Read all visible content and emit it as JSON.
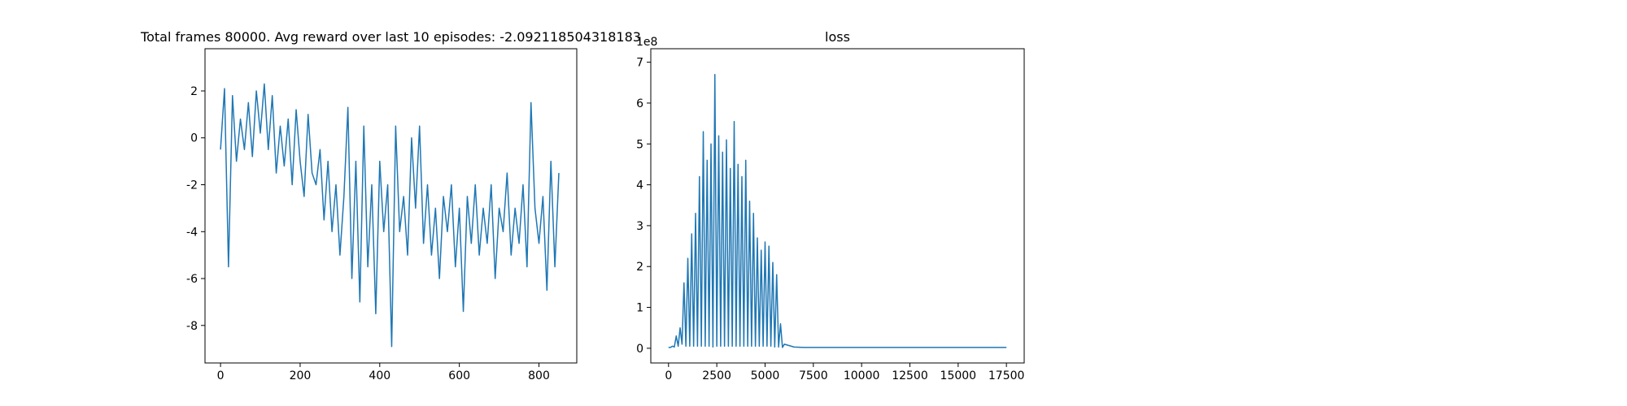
{
  "chart_data": [
    {
      "type": "line",
      "title": "Total frames 80000. Avg reward over last 10 episodes: -2.092118504318183",
      "color": "#1f77b4",
      "x": [
        0,
        10,
        20,
        30,
        40,
        50,
        60,
        70,
        80,
        90,
        100,
        110,
        120,
        130,
        140,
        150,
        160,
        170,
        180,
        190,
        200,
        210,
        220,
        230,
        240,
        250,
        260,
        270,
        280,
        290,
        300,
        310,
        320,
        330,
        340,
        350,
        360,
        370,
        380,
        390,
        400,
        410,
        420,
        430,
        440,
        450,
        460,
        470,
        480,
        490,
        500,
        510,
        520,
        530,
        540,
        550,
        560,
        570,
        580,
        590,
        600,
        610,
        620,
        630,
        640,
        650,
        660,
        670,
        680,
        690,
        700,
        710,
        720,
        730,
        740,
        750,
        760,
        770,
        780,
        790,
        800,
        810,
        820,
        830,
        840,
        850
      ],
      "values": [
        -0.5,
        2.1,
        -5.5,
        1.8,
        -1.0,
        0.8,
        -0.5,
        1.5,
        -0.8,
        2.0,
        0.2,
        2.3,
        -0.5,
        1.8,
        -1.5,
        0.5,
        -1.2,
        0.8,
        -2.0,
        1.2,
        -1.0,
        -2.5,
        1.0,
        -1.5,
        -2.0,
        -0.5,
        -3.5,
        -1.0,
        -4.0,
        -2.0,
        -5.0,
        -2.5,
        1.3,
        -6.0,
        -1.0,
        -7.0,
        0.5,
        -5.5,
        -2.0,
        -7.5,
        -1.0,
        -4.0,
        -2.0,
        -8.9,
        0.5,
        -4.0,
        -2.5,
        -5.0,
        0.0,
        -3.0,
        0.5,
        -4.5,
        -2.0,
        -5.0,
        -3.0,
        -6.0,
        -2.5,
        -4.0,
        -2.0,
        -5.5,
        -3.0,
        -7.4,
        -2.5,
        -4.5,
        -2.0,
        -5.0,
        -3.0,
        -4.5,
        -2.0,
        -6.0,
        -3.0,
        -4.0,
        -1.5,
        -5.0,
        -3.0,
        -4.5,
        -2.0,
        -5.5,
        1.5,
        -3.0,
        -4.5,
        -2.5,
        -6.5,
        -1.0,
        -5.5,
        -1.5
      ],
      "xlim": [
        -39,
        895
      ],
      "ylim": [
        -9.6,
        3.8
      ],
      "xticks": [
        0,
        200,
        400,
        600,
        800
      ],
      "yticks": [
        -8,
        -6,
        -4,
        -2,
        0,
        2
      ]
    },
    {
      "type": "line",
      "title": "loss",
      "color": "#1f77b4",
      "y_offset_label": "1e8",
      "x": [
        0,
        100,
        200,
        300,
        400,
        500,
        600,
        700,
        800,
        900,
        1000,
        1100,
        1200,
        1300,
        1400,
        1500,
        1600,
        1700,
        1800,
        1900,
        2000,
        2100,
        2200,
        2300,
        2400,
        2500,
        2600,
        2700,
        2800,
        2900,
        3000,
        3100,
        3200,
        3300,
        3400,
        3500,
        3600,
        3700,
        3800,
        3900,
        4000,
        4100,
        4200,
        4300,
        4400,
        4500,
        4600,
        4700,
        4800,
        4900,
        5000,
        5100,
        5200,
        5300,
        5400,
        5500,
        5600,
        5700,
        5800,
        5900,
        6000,
        6500,
        7000,
        8000,
        9000,
        10000,
        11000,
        12000,
        13000,
        14000,
        15000,
        16000,
        17000,
        17500
      ],
      "values": [
        0.02,
        0.02,
        0.05,
        0.03,
        0.3,
        0.05,
        0.5,
        0.1,
        1.6,
        0.05,
        2.2,
        0.05,
        2.8,
        0.05,
        3.3,
        0.05,
        4.2,
        0.05,
        5.3,
        0.05,
        4.6,
        0.05,
        5.0,
        0.03,
        6.7,
        0.05,
        5.2,
        0.05,
        4.8,
        0.05,
        5.1,
        0.05,
        4.4,
        0.05,
        5.55,
        0.05,
        4.5,
        0.05,
        4.2,
        0.05,
        4.6,
        0.05,
        3.6,
        0.05,
        3.3,
        0.05,
        2.7,
        0.05,
        2.4,
        0.05,
        2.6,
        0.05,
        2.5,
        0.05,
        2.1,
        0.03,
        1.8,
        0.03,
        0.6,
        0.02,
        0.1,
        0.03,
        0.02,
        0.02,
        0.02,
        0.02,
        0.02,
        0.02,
        0.02,
        0.02,
        0.02,
        0.02,
        0.02,
        0.02
      ],
      "xlim": [
        -918,
        18420
      ],
      "ylim": [
        -0.36,
        7.33
      ],
      "xticks": [
        0,
        2500,
        5000,
        7500,
        10000,
        12500,
        15000,
        17500
      ],
      "yticks": [
        0,
        1,
        2,
        3,
        4,
        5,
        6,
        7
      ]
    }
  ]
}
